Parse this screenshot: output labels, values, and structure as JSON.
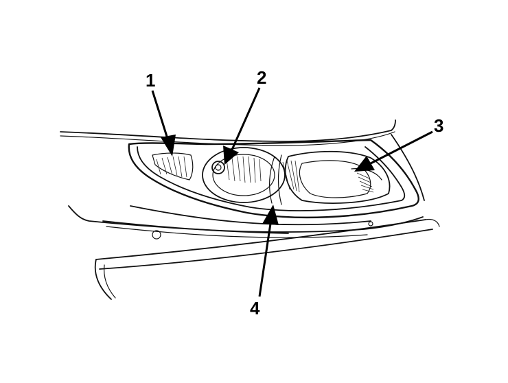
{
  "diagram": {
    "callouts": [
      {
        "id": "1",
        "label": "1"
      },
      {
        "id": "2",
        "label": "2"
      },
      {
        "id": "3",
        "label": "3"
      },
      {
        "id": "4",
        "label": "4"
      }
    ]
  }
}
